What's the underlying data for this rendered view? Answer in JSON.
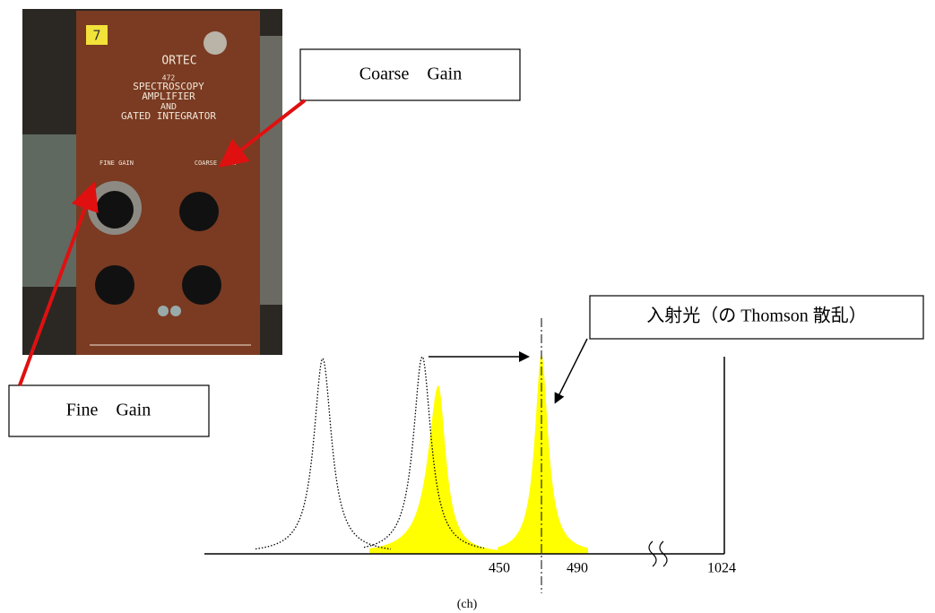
{
  "photo": {
    "unit_number": "7",
    "brand": "ORTEC",
    "model": "472",
    "title_lines": [
      "SPECTROSCOPY",
      "AMPLIFIER",
      "AND",
      "GATED INTEGRATOR"
    ],
    "fine_gain_label": "FINE GAIN",
    "coarse_gain_label": "COARSE GAIN"
  },
  "callouts": {
    "coarse_gain": "Coarse　Gain",
    "fine_gain": "Fine　Gain",
    "incident_light": "入射光（の Thomson 散乱）"
  },
  "axis": {
    "labels": [
      "450",
      "490",
      "1024"
    ],
    "unit": "(ch)"
  }
}
